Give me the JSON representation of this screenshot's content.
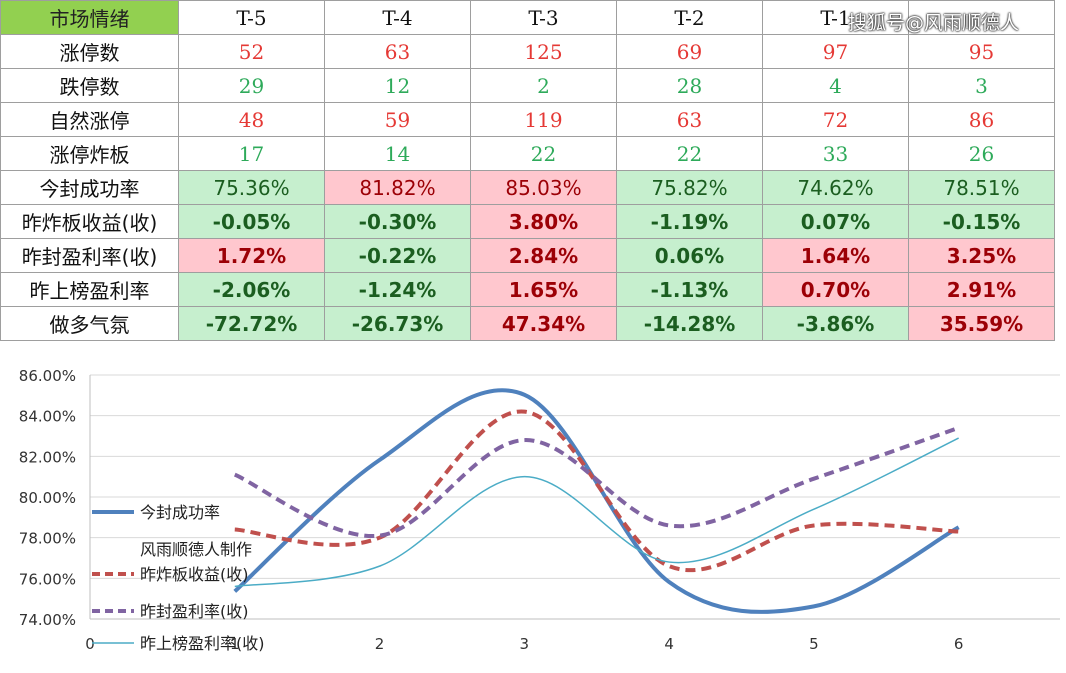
{
  "table": {
    "header": [
      "市场情绪",
      "T-5",
      "T-4",
      "T-3",
      "T-2",
      "T-1",
      ""
    ],
    "rows": [
      {
        "label": "涨停数",
        "values": [
          "52",
          "63",
          "125",
          "69",
          "97",
          "95"
        ],
        "style": "red-txt"
      },
      {
        "label": "跌停数",
        "values": [
          "29",
          "12",
          "2",
          "28",
          "4",
          "3"
        ],
        "style": "green-txt"
      },
      {
        "label": "自然涨停",
        "values": [
          "48",
          "59",
          "119",
          "63",
          "72",
          "86"
        ],
        "style": "red-txt"
      },
      {
        "label": "涨停炸板",
        "values": [
          "17",
          "14",
          "22",
          "22",
          "33",
          "26"
        ],
        "style": "green-txt"
      },
      {
        "label": "今封成功率",
        "values": [
          "75.36%",
          "81.82%",
          "85.03%",
          "75.82%",
          "74.62%",
          "78.51%"
        ],
        "bg": [
          "green",
          "red",
          "red",
          "green",
          "green",
          "green"
        ],
        "bold": false
      },
      {
        "label": "昨炸板收益(收)",
        "values": [
          "-0.05%",
          "-0.30%",
          "3.80%",
          "-1.19%",
          "0.07%",
          "-0.15%"
        ],
        "bg": [
          "green",
          "green",
          "red",
          "green",
          "green",
          "green"
        ],
        "bold": true
      },
      {
        "label": "昨封盈利率(收)",
        "values": [
          "1.72%",
          "-0.22%",
          "2.84%",
          "0.06%",
          "1.64%",
          "3.25%"
        ],
        "bg": [
          "red",
          "green",
          "red",
          "green",
          "red",
          "red"
        ],
        "bold": true
      },
      {
        "label": "昨上榜盈利率",
        "values": [
          "-2.06%",
          "-1.24%",
          "1.65%",
          "-1.13%",
          "0.70%",
          "2.91%"
        ],
        "bg": [
          "green",
          "green",
          "red",
          "green",
          "red",
          "red"
        ],
        "bold": true
      },
      {
        "label": "做多气氛",
        "values": [
          "-72.72%",
          "-26.73%",
          "47.34%",
          "-14.28%",
          "-3.86%",
          "35.59%"
        ],
        "bg": [
          "green",
          "green",
          "red",
          "green",
          "green",
          "red"
        ],
        "bold": true
      }
    ]
  },
  "watermark": "搜狐号@风雨顺德人",
  "colors": {
    "header_bg": "#92d050",
    "good_bg": "#c6efce",
    "bad_bg": "#ffc7ce",
    "s1": "#4f81bd",
    "s2": "#c0504d",
    "s3": "#8064a2",
    "s4": "#4bacc6"
  },
  "chart_data": {
    "type": "line",
    "x": [
      1,
      2,
      3,
      4,
      5,
      6
    ],
    "xticks": [
      "0",
      "1",
      "2",
      "3",
      "4",
      "5",
      "6"
    ],
    "yticks": [
      "74.00%",
      "76.00%",
      "78.00%",
      "80.00%",
      "82.00%",
      "84.00%",
      "86.00%"
    ],
    "ylim": [
      74,
      86
    ],
    "xlim": [
      0,
      6.7
    ],
    "grid": true,
    "legend_placement": "left",
    "legend_note": "风雨顺德人制作",
    "series": [
      {
        "name": "今封成功率",
        "values": [
          75.36,
          81.82,
          85.03,
          75.82,
          74.62,
          78.51
        ],
        "color": "#4f81bd",
        "dash": "none",
        "width": 4
      },
      {
        "name": "昨炸板收益(收)",
        "values": [
          78.4,
          78.0,
          84.2,
          76.6,
          78.6,
          78.3
        ],
        "color": "#c0504d",
        "dash": "10,6",
        "width": 4
      },
      {
        "name": "昨封盈利率(收)",
        "values": [
          81.1,
          78.1,
          82.8,
          78.6,
          80.9,
          83.4
        ],
        "color": "#8064a2",
        "dash": "10,6",
        "width": 4
      },
      {
        "name": "昨上榜盈利率(收)",
        "values": [
          75.6,
          76.6,
          81.0,
          76.8,
          79.4,
          82.9
        ],
        "color": "#4bacc6",
        "dash": "none",
        "width": 1.5
      }
    ]
  }
}
